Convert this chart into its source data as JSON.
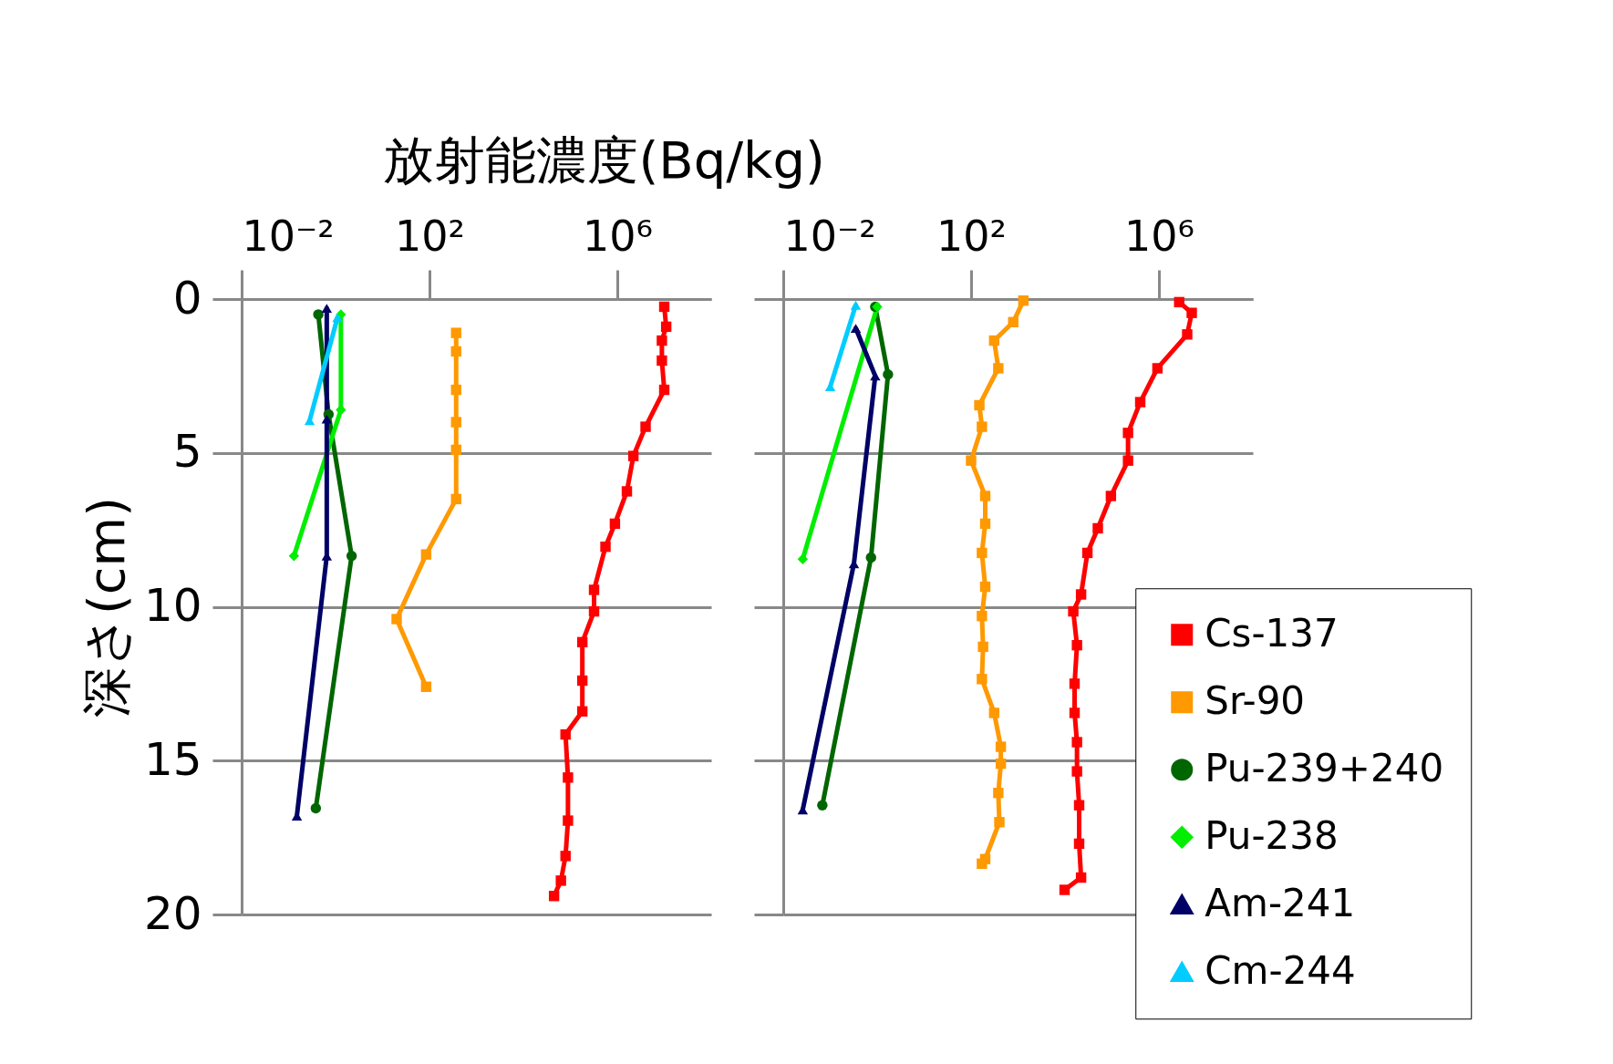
{
  "chart_data": [
    {
      "type": "line",
      "title": "放射能濃度(Bq/kg)",
      "ylabel": "深さ(cm)",
      "orientation": "horizontal",
      "log": "x",
      "grid": "y",
      "line_style": "solid",
      "xlim": [
        0.01,
        100000000
      ],
      "xticks": [
        {
          "value": 0.01,
          "label": "10⁻²"
        },
        {
          "value": 100,
          "label": "10²"
        },
        {
          "value": 1000000,
          "label": "10⁶"
        }
      ],
      "ylim": [
        20,
        0
      ],
      "yticks": [
        0,
        5,
        10,
        15,
        20
      ],
      "series": [
        {
          "color": "#ff0000",
          "marker": "square",
          "x": [
            0.25,
            0.9,
            1.35,
            2.0,
            2.95,
            4.15,
            5.1,
            6.25,
            7.3,
            8.05,
            9.45,
            10.15,
            11.15,
            12.4,
            13.4,
            14.15,
            15.55,
            16.95,
            18.1,
            18.9,
            19.4
          ],
          "values": [
            10000000,
            11000000,
            8900000,
            8900000,
            10000000,
            4000000,
            2200000,
            1600000,
            890000,
            560000,
            320000,
            320000,
            180000,
            180000,
            180000,
            79000,
            89000,
            89000,
            79000,
            63000,
            45000
          ]
        },
        {
          "color": "#ff9900",
          "marker": "square",
          "x": [
            1.1,
            1.7,
            2.95,
            4.0,
            4.9,
            6.5,
            8.3,
            10.4,
            12.6
          ],
          "values": [
            370,
            370,
            370,
            370,
            370,
            370,
            85,
            20,
            85
          ]
        },
        {
          "color": "#006600",
          "marker": "circle",
          "x": [
            0.5,
            3.75,
            8.35,
            16.55
          ],
          "values": [
            0.43,
            0.71,
            2.2,
            0.38
          ]
        },
        {
          "color": "#00ee00",
          "marker": "diamond",
          "x": [
            0.5,
            3.6,
            8.35
          ],
          "values": [
            1.3,
            1.3,
            0.13
          ]
        },
        {
          "color": "#000066",
          "marker": "triangle",
          "x": [
            0.3,
            3.9,
            8.35,
            16.8
          ],
          "values": [
            0.65,
            0.65,
            0.65,
            0.15
          ]
        },
        {
          "color": "#00ccff",
          "marker": "triangle",
          "x": [
            0.6,
            3.95
          ],
          "values": [
            1.1,
            0.28
          ]
        }
      ]
    },
    {
      "type": "line",
      "orientation": "horizontal",
      "log": "x",
      "grid": "y",
      "line_style": "solid",
      "legend": "bottom right",
      "tick_labels": "x",
      "xlim": [
        0.01,
        100000000
      ],
      "xticks": [
        {
          "value": 0.01,
          "label": "10⁻²"
        },
        {
          "value": 100,
          "label": "10²"
        },
        {
          "value": 1000000,
          "label": "10⁶"
        }
      ],
      "ylim": [
        20,
        0
      ],
      "yticks": [
        0,
        5,
        10,
        15,
        20
      ],
      "series": [
        {
          "name": "Cs-137",
          "color": "#ff0000",
          "marker": "square",
          "x": [
            0.1,
            0.45,
            1.15,
            2.25,
            3.35,
            4.35,
            5.25,
            6.4,
            7.45,
            8.25,
            9.6,
            10.15,
            11.25,
            12.5,
            13.45,
            14.4,
            15.35,
            16.45,
            17.7,
            18.8,
            19.2
          ],
          "values": [
            2700000,
            5000000,
            4000000,
            930000,
            400000,
            220000,
            220000,
            95000,
            50000,
            30000,
            22000,
            15000,
            18000,
            16000,
            16000,
            18000,
            18000,
            20000,
            20000,
            22000,
            9800
          ]
        },
        {
          "name": "Sr-90",
          "color": "#ff9900",
          "marker": "square",
          "x": [
            0.05,
            0.75,
            1.35,
            2.25,
            3.45,
            4.15,
            5.25,
            6.4,
            7.3,
            8.25,
            9.35,
            10.3,
            11.3,
            12.35,
            13.45,
            14.55,
            15.1,
            16.05,
            17.0,
            18.2,
            18.35
          ],
          "values": [
            1300,
            790,
            310,
            380,
            150,
            170,
            100,
            200,
            200,
            170,
            200,
            170,
            180,
            170,
            310,
            430,
            430,
            380,
            400,
            200,
            170
          ]
        },
        {
          "name": "Pu-239+240",
          "color": "#006600",
          "marker": "circle",
          "x": [
            0.25,
            2.45,
            8.4,
            16.45
          ],
          "values": [
            0.91,
            1.7,
            0.74,
            0.068
          ]
        },
        {
          "name": "Pu-238",
          "color": "#00ee00",
          "marker": "diamond",
          "x": [
            0.25,
            8.45
          ],
          "values": [
            1.0,
            0.026
          ]
        },
        {
          "name": "Am-241",
          "color": "#000066",
          "marker": "triangle",
          "x": [
            0.95,
            2.5,
            8.6,
            16.6
          ],
          "values": [
            0.35,
            0.91,
            0.32,
            0.026
          ]
        },
        {
          "name": "Cm-244",
          "color": "#00ccff",
          "marker": "triangle",
          "x": [
            0.2,
            2.85
          ],
          "values": [
            0.35,
            0.1
          ]
        }
      ]
    }
  ]
}
